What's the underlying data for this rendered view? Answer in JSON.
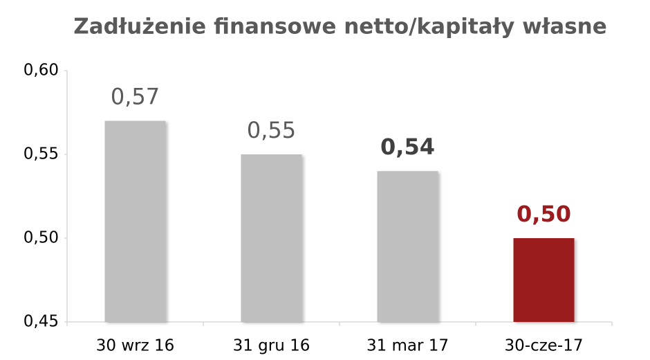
{
  "chart_data": {
    "type": "bar",
    "title": "Zadłużenie finansowe netto/kapitały własne",
    "categories": [
      "30 wrz 16",
      "31 gru 16",
      "31 mar 17",
      "30-cze-17"
    ],
    "values": [
      0.57,
      0.55,
      0.54,
      0.5
    ],
    "value_labels": [
      "0,57",
      "0,55",
      "0,54",
      "0,50"
    ],
    "colors": [
      "#bfbfbf",
      "#bfbfbf",
      "#bfbfbf",
      "#9b1b1e"
    ],
    "value_label_colors": [
      "#595959",
      "#595959",
      "#404040",
      "#9b1b1e"
    ],
    "value_label_bold": [
      false,
      false,
      true,
      true
    ],
    "ylim": [
      0.45,
      0.6
    ],
    "yticks": [
      {
        "value": 0.45,
        "label": "0,45"
      },
      {
        "value": 0.5,
        "label": "0,50"
      },
      {
        "value": 0.55,
        "label": "0,55"
      },
      {
        "value": 0.6,
        "label": "0,60"
      }
    ],
    "grid": false
  }
}
